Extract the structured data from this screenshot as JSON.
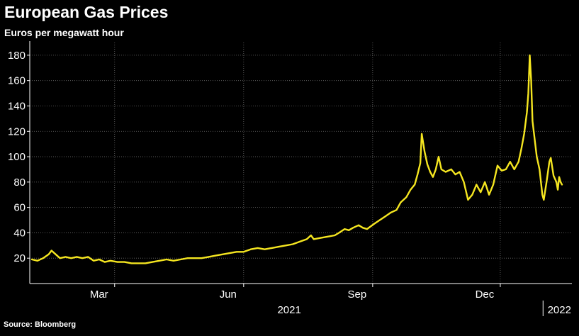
{
  "title": "European Gas Prices",
  "subtitle": "Euros per megawatt hour",
  "source": "Source: Bloomberg",
  "colors": {
    "background": "#000000",
    "line": "#f5e620",
    "grid": "#6a6a6a",
    "text": "#ffffff"
  },
  "chart_data": {
    "type": "line",
    "title": "European Gas Prices",
    "ylabel": "Euros per megawatt hour",
    "xlabel": "",
    "ylim": [
      0,
      190
    ],
    "yticks": [
      20,
      40,
      60,
      80,
      100,
      120,
      140,
      160,
      180
    ],
    "xticks": [
      {
        "label": "Mar",
        "date": "2021-03-01"
      },
      {
        "label": "Jun",
        "date": "2021-06-01"
      },
      {
        "label": "Sep",
        "date": "2021-09-01"
      },
      {
        "label": "Dec",
        "date": "2021-12-01"
      }
    ],
    "year_labels": [
      {
        "label": "2021",
        "date": "2021-07-01"
      },
      {
        "label": "2022",
        "date": "2022-01-01"
      }
    ],
    "grid": true,
    "legend": "none",
    "x_start": "2021-01-01",
    "x_end": "2022-01-14",
    "series": [
      {
        "points": [
          [
            "2021-01-01",
            19
          ],
          [
            "2021-01-05",
            18
          ],
          [
            "2021-01-09",
            20
          ],
          [
            "2021-01-13",
            23
          ],
          [
            "2021-01-15",
            26
          ],
          [
            "2021-01-18",
            23
          ],
          [
            "2021-01-21",
            20
          ],
          [
            "2021-01-25",
            21
          ],
          [
            "2021-01-29",
            20
          ],
          [
            "2021-02-02",
            21
          ],
          [
            "2021-02-06",
            20
          ],
          [
            "2021-02-10",
            21
          ],
          [
            "2021-02-14",
            18
          ],
          [
            "2021-02-18",
            19
          ],
          [
            "2021-02-22",
            17
          ],
          [
            "2021-02-26",
            18
          ],
          [
            "2021-03-03",
            17
          ],
          [
            "2021-03-08",
            17
          ],
          [
            "2021-03-13",
            16
          ],
          [
            "2021-03-18",
            16
          ],
          [
            "2021-03-23",
            16
          ],
          [
            "2021-03-28",
            17
          ],
          [
            "2021-04-02",
            18
          ],
          [
            "2021-04-07",
            19
          ],
          [
            "2021-04-12",
            18
          ],
          [
            "2021-04-17",
            19
          ],
          [
            "2021-04-22",
            20
          ],
          [
            "2021-04-27",
            20
          ],
          [
            "2021-05-02",
            20
          ],
          [
            "2021-05-07",
            21
          ],
          [
            "2021-05-12",
            22
          ],
          [
            "2021-05-17",
            23
          ],
          [
            "2021-05-22",
            24
          ],
          [
            "2021-05-27",
            25
          ],
          [
            "2021-06-01",
            25
          ],
          [
            "2021-06-06",
            27
          ],
          [
            "2021-06-11",
            28
          ],
          [
            "2021-06-16",
            27
          ],
          [
            "2021-06-21",
            28
          ],
          [
            "2021-06-26",
            29
          ],
          [
            "2021-07-01",
            30
          ],
          [
            "2021-07-06",
            31
          ],
          [
            "2021-07-11",
            33
          ],
          [
            "2021-07-16",
            35
          ],
          [
            "2021-07-19",
            38
          ],
          [
            "2021-07-21",
            35
          ],
          [
            "2021-07-26",
            36
          ],
          [
            "2021-07-31",
            37
          ],
          [
            "2021-08-05",
            38
          ],
          [
            "2021-08-08",
            40
          ],
          [
            "2021-08-12",
            43
          ],
          [
            "2021-08-15",
            42
          ],
          [
            "2021-08-18",
            44
          ],
          [
            "2021-08-22",
            46
          ],
          [
            "2021-08-25",
            44
          ],
          [
            "2021-08-28",
            43
          ],
          [
            "2021-09-02",
            47
          ],
          [
            "2021-09-06",
            50
          ],
          [
            "2021-09-10",
            53
          ],
          [
            "2021-09-14",
            56
          ],
          [
            "2021-09-18",
            58
          ],
          [
            "2021-09-21",
            64
          ],
          [
            "2021-09-25",
            68
          ],
          [
            "2021-09-28",
            74
          ],
          [
            "2021-10-01",
            78
          ],
          [
            "2021-10-03",
            86
          ],
          [
            "2021-10-05",
            95
          ],
          [
            "2021-10-06",
            118
          ],
          [
            "2021-10-08",
            104
          ],
          [
            "2021-10-10",
            94
          ],
          [
            "2021-10-12",
            88
          ],
          [
            "2021-10-14",
            84
          ],
          [
            "2021-10-16",
            90
          ],
          [
            "2021-10-18",
            100
          ],
          [
            "2021-10-20",
            90
          ],
          [
            "2021-10-23",
            88
          ],
          [
            "2021-10-27",
            90
          ],
          [
            "2021-10-30",
            86
          ],
          [
            "2021-11-02",
            88
          ],
          [
            "2021-11-05",
            80
          ],
          [
            "2021-11-08",
            66
          ],
          [
            "2021-11-11",
            70
          ],
          [
            "2021-11-14",
            78
          ],
          [
            "2021-11-17",
            72
          ],
          [
            "2021-11-20",
            80
          ],
          [
            "2021-11-23",
            70
          ],
          [
            "2021-11-26",
            78
          ],
          [
            "2021-11-29",
            93
          ],
          [
            "2021-12-02",
            89
          ],
          [
            "2021-12-05",
            90
          ],
          [
            "2021-12-08",
            96
          ],
          [
            "2021-12-11",
            90
          ],
          [
            "2021-12-14",
            96
          ],
          [
            "2021-12-16",
            106
          ],
          [
            "2021-12-18",
            118
          ],
          [
            "2021-12-20",
            135
          ],
          [
            "2021-12-21",
            150
          ],
          [
            "2021-12-22",
            180
          ],
          [
            "2021-12-23",
            160
          ],
          [
            "2021-12-24",
            128
          ],
          [
            "2021-12-27",
            100
          ],
          [
            "2021-12-29",
            90
          ],
          [
            "2021-12-31",
            70
          ],
          [
            "2022-01-01",
            66
          ],
          [
            "2022-01-03",
            80
          ],
          [
            "2022-01-05",
            96
          ],
          [
            "2022-01-06",
            99
          ],
          [
            "2022-01-08",
            85
          ],
          [
            "2022-01-10",
            80
          ],
          [
            "2022-01-11",
            74
          ],
          [
            "2022-01-12",
            84
          ],
          [
            "2022-01-13",
            80
          ],
          [
            "2022-01-14",
            78
          ]
        ]
      }
    ]
  }
}
